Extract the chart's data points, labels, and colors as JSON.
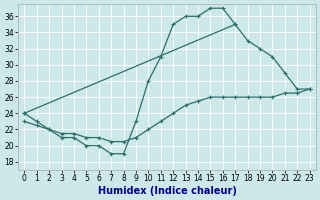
{
  "xlabel": "Humidex (Indice chaleur)",
  "bg_color": "#cce8e8",
  "grid_color": "#ffffff",
  "line_color": "#2e6e6e",
  "x_ticks": [
    0,
    1,
    2,
    3,
    4,
    5,
    6,
    7,
    8,
    9,
    10,
    11,
    12,
    13,
    14,
    15,
    16,
    17,
    18,
    19,
    20,
    21,
    22,
    23
  ],
  "y_ticks": [
    18,
    20,
    22,
    24,
    26,
    28,
    30,
    32,
    34,
    36
  ],
  "ylim": [
    17,
    37.5
  ],
  "xlim": [
    -0.5,
    23.5
  ],
  "line1_x": [
    0,
    1,
    2,
    3,
    4,
    5,
    6,
    7,
    8,
    9,
    10,
    11,
    12,
    13,
    14,
    15,
    16,
    17
  ],
  "line1_y": [
    24,
    23,
    22,
    21,
    21,
    20,
    20,
    19,
    19,
    23,
    28,
    31,
    35,
    36,
    36,
    37,
    37,
    35
  ],
  "line2_x": [
    0,
    17,
    18,
    19,
    20,
    21,
    22,
    23
  ],
  "line2_y": [
    24,
    35,
    33,
    32,
    31,
    29,
    27,
    27
  ],
  "line3_x": [
    0,
    1,
    2,
    3,
    4,
    5,
    6,
    7,
    8,
    9,
    10,
    11,
    12,
    13,
    14,
    15,
    16,
    17,
    18,
    19,
    20,
    21,
    22,
    23
  ],
  "line3_y": [
    23,
    22.5,
    22,
    21.5,
    21.5,
    21,
    21,
    20.5,
    20.5,
    21,
    22,
    23,
    24,
    25,
    25.5,
    26,
    26,
    26,
    26,
    26,
    26,
    26.5,
    26.5,
    27
  ],
  "xlabel_color": "#00008b",
  "xlabel_fontsize": 7,
  "tick_fontsize": 5.5,
  "marker": "+",
  "marker_size": 3,
  "linewidth": 0.9
}
